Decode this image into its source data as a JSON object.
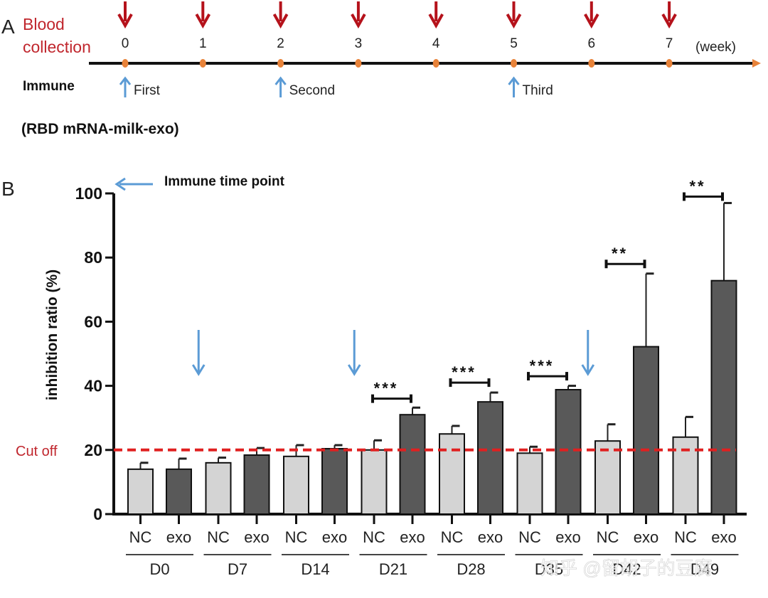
{
  "panel_a": {
    "panel_label": "A",
    "blood_collection_label_line1": "Blood",
    "blood_collection_label_line2": "collection",
    "weeks": [
      "0",
      "1",
      "2",
      "3",
      "4",
      "5",
      "6",
      "7"
    ],
    "unit_label": "(week)",
    "immune_label": "Immune",
    "immunizations": [
      {
        "week": 0,
        "label": "First"
      },
      {
        "week": 2,
        "label": "Second"
      },
      {
        "week": 5,
        "label": "Third"
      }
    ],
    "vaccine_label": "(RBD mRNA-milk-exo)",
    "colors": {
      "collection_arrow": "#b5121b",
      "timeline_dot": "#e8833a",
      "immune_arrow": "#5b9bd5",
      "label_red": "#c0262d"
    }
  },
  "chart_data": {
    "type": "bar",
    "panel_label": "B",
    "title": "",
    "xlabel": "",
    "ylabel": "inhibition ratio (%)",
    "ylim": [
      0,
      100
    ],
    "yticks": [
      "0",
      "20",
      "40",
      "60",
      "80",
      "100"
    ],
    "ytick_values": [
      0,
      20,
      40,
      60,
      80,
      100
    ],
    "groups": [
      "D0",
      "D7",
      "D14",
      "D21",
      "D28",
      "D35",
      "D42",
      "D49"
    ],
    "subcategories": [
      "NC",
      "exo"
    ],
    "series": [
      {
        "name": "NC",
        "color": "#d4d4d4",
        "values": [
          14.0,
          16.0,
          18.0,
          20.0,
          25.0,
          19.0,
          22.8,
          24.0
        ],
        "error_upper": [
          16.0,
          17.6,
          21.5,
          23.0,
          27.5,
          21.0,
          28.0,
          30.3
        ]
      },
      {
        "name": "exo",
        "color": "#595959",
        "values": [
          14.0,
          18.4,
          20.4,
          31.0,
          35.0,
          38.8,
          52.2,
          72.8
        ],
        "error_upper": [
          17.3,
          20.6,
          21.5,
          33.2,
          37.9,
          40.0,
          75.0,
          97.0
        ]
      }
    ],
    "cutoff": {
      "label": "Cut off",
      "value": 20,
      "color": "#e02020"
    },
    "significance": [
      {
        "group": "D21",
        "label": "***",
        "y": 36
      },
      {
        "group": "D28",
        "label": "***",
        "y": 41
      },
      {
        "group": "D35",
        "label": "***",
        "y": 43
      },
      {
        "group": "D42",
        "label": "**",
        "y": 78
      },
      {
        "group": "D49",
        "label": "**",
        "y": 99
      }
    ],
    "immune_time_points": {
      "legend_label": "Immune time point",
      "between_groups": [
        [
          "D0",
          "D7"
        ],
        [
          "D14",
          "D21"
        ],
        [
          "D35",
          "D42"
        ]
      ],
      "color": "#5b9bd5"
    },
    "watermark": "知乎 @留胡子的豆腐"
  }
}
